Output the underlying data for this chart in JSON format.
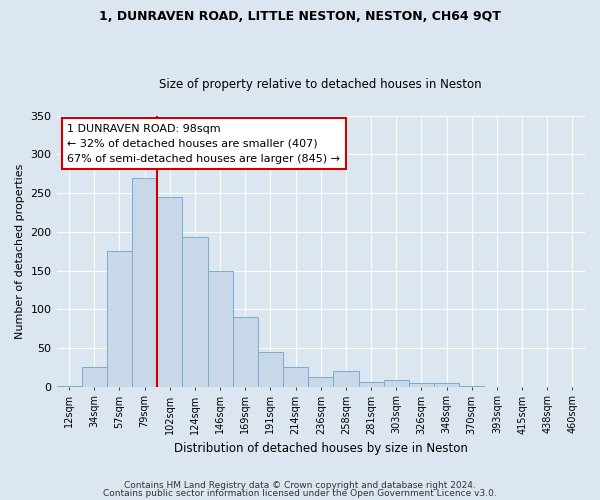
{
  "title1": "1, DUNRAVEN ROAD, LITTLE NESTON, NESTON, CH64 9QT",
  "title2": "Size of property relative to detached houses in Neston",
  "xlabel": "Distribution of detached houses by size in Neston",
  "ylabel": "Number of detached properties",
  "bar_color": "#c8d8e8",
  "bar_edge_color": "#7aaccf",
  "background_color": "#dce6f0",
  "fig_background_color": "#dce6f0",
  "grid_color": "#ffffff",
  "annotation_line_color": "#cc0000",
  "annotation_box_color": "#cc0000",
  "annotation_text": "1 DUNRAVEN ROAD: 98sqm\n← 32% of detached houses are smaller (407)\n67% of semi-detached houses are larger (845) →",
  "categories": [
    "12sqm",
    "34sqm",
    "57sqm",
    "79sqm",
    "102sqm",
    "124sqm",
    "146sqm",
    "169sqm",
    "191sqm",
    "214sqm",
    "236sqm",
    "258sqm",
    "281sqm",
    "303sqm",
    "326sqm",
    "348sqm",
    "370sqm",
    "393sqm",
    "415sqm",
    "438sqm",
    "460sqm"
  ],
  "bar_heights": [
    1,
    25,
    175,
    270,
    245,
    193,
    150,
    90,
    45,
    25,
    12,
    20,
    6,
    8,
    5,
    5,
    1,
    0,
    0,
    0,
    0
  ],
  "ylim": [
    0,
    350
  ],
  "yticks": [
    0,
    50,
    100,
    150,
    200,
    250,
    300,
    350
  ],
  "red_line_x": 3.5,
  "footer1": "Contains HM Land Registry data © Crown copyright and database right 2024.",
  "footer2": "Contains public sector information licensed under the Open Government Licence v3.0."
}
